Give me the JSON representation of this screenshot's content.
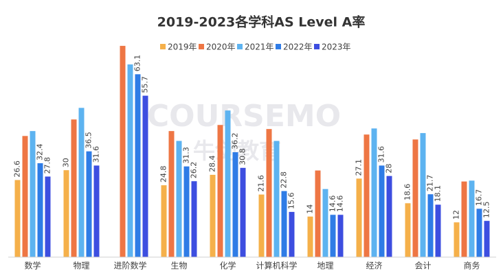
{
  "chart_data": {
    "type": "bar",
    "title": "2019-2023各学科AS Level A率",
    "watermark": [
      "COURSEMO",
      "牛剑教育"
    ],
    "categories": [
      "数学",
      "物理",
      "进阶数学",
      "生物",
      "化学",
      "计算机科学",
      "地理",
      "经济",
      "会计",
      "商务"
    ],
    "series": [
      {
        "name": "2019年",
        "color": "#f5b04a",
        "data_labels": true,
        "values": [
          26.6,
          30,
          null,
          24.8,
          28.4,
          21.6,
          14,
          27.1,
          18.6,
          12
        ]
      },
      {
        "name": "2020年",
        "color": "#ee7644",
        "data_labels": false,
        "values": [
          41.8,
          47.5,
          72.9,
          43.5,
          45.6,
          44.2,
          29.9,
          42.3,
          40.6,
          26.1
        ]
      },
      {
        "name": "2021年",
        "color": "#5db3f0",
        "data_labels": false,
        "values": [
          43.5,
          51.5,
          66.5,
          40.1,
          50.6,
          40.1,
          23.5,
          44.4,
          42.8,
          26.4
        ]
      },
      {
        "name": "2022年",
        "color": "#2f7ce6",
        "data_labels": true,
        "values": [
          32.4,
          36.5,
          63.1,
          31.3,
          36.2,
          22.8,
          14.6,
          31.6,
          21.7,
          16.7
        ]
      },
      {
        "name": "2023年",
        "color": "#3d4ee0",
        "data_labels": true,
        "values": [
          27.8,
          31.6,
          55.7,
          26.2,
          30.8,
          15.6,
          14.6,
          28,
          18.1,
          12.5
        ]
      }
    ],
    "ylim": [
      0,
      75
    ],
    "legend": "top"
  }
}
